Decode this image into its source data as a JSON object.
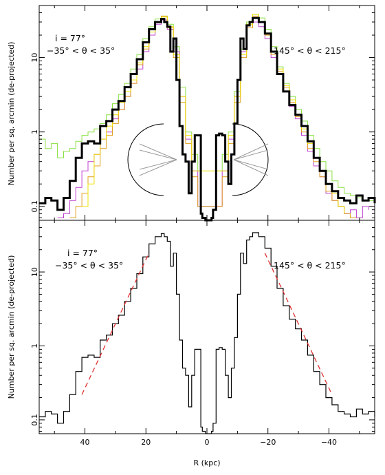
{
  "chart_data": [
    {
      "type": "line",
      "panel": "top",
      "xlabel": "",
      "ylabel": "Number per sq. arcmin (de-projected)",
      "xlim": [
        55,
        -55
      ],
      "ylim": [
        0.065,
        50
      ],
      "yscale": "log",
      "x_tick_values": [
        40,
        20,
        0,
        -20,
        -40
      ],
      "y_ticks": [
        {
          "value": 0.1,
          "label": "0.1"
        },
        {
          "value": 1,
          "label": "1"
        },
        {
          "value": 10,
          "label": "10"
        }
      ],
      "annotations": {
        "inclination": "i = 77°",
        "left_wedge": "−35° < θ < 35°",
        "right_wedge": "145° < θ < 215°"
      },
      "series": [
        {
          "color": "#000000",
          "width": 3,
          "x": [
            55,
            53,
            51,
            49,
            47,
            45,
            43,
            41,
            39,
            37,
            35,
            33,
            31,
            29,
            27,
            25,
            23,
            21,
            19,
            17,
            15,
            14,
            13,
            12,
            11,
            10,
            9,
            8,
            7,
            6,
            5,
            4,
            3,
            2,
            1.5,
            0.5,
            -0.5,
            -1.5,
            -2,
            -3,
            -4,
            -5,
            -6,
            -7,
            -8,
            -9,
            -10,
            -11,
            -12,
            -13,
            -14,
            -15,
            -17,
            -19,
            -21,
            -23,
            -25,
            -27,
            -29,
            -31,
            -33,
            -35,
            -37,
            -39,
            -41,
            -43,
            -45,
            -47,
            -49,
            -51,
            -53,
            -55
          ],
          "y": [
            0.11,
            0.13,
            0.12,
            0.09,
            0.13,
            0.22,
            0.45,
            0.7,
            0.75,
            0.7,
            1.2,
            1.4,
            2.0,
            2.6,
            4.0,
            6.0,
            9.5,
            16,
            24,
            30,
            33,
            30,
            26,
            12,
            18,
            5.0,
            1.2,
            0.5,
            0.4,
            0.15,
            0.4,
            0.9,
            0.9,
            0.08,
            0.07,
            0.04,
            0.04,
            0.07,
            0.09,
            0.9,
            0.95,
            0.9,
            0.4,
            0.2,
            0.5,
            1.3,
            5.0,
            18,
            13,
            27,
            30,
            34,
            30,
            21,
            12,
            6.0,
            3.5,
            2.3,
            1.7,
            1.2,
            0.75,
            0.45,
            0.3,
            0.2,
            0.16,
            0.13,
            0.12,
            0.11,
            0.14,
            0.12,
            0.13,
            0.11
          ]
        },
        {
          "color": "#88e040",
          "width": 1,
          "x": [
            55,
            53,
            51,
            49,
            47,
            45,
            43,
            41,
            39,
            37,
            35,
            33,
            31,
            29,
            27,
            25,
            23,
            21,
            19,
            17,
            15,
            13,
            11,
            9,
            7,
            5,
            3,
            2,
            -2,
            -3,
            -5,
            -7,
            -9,
            -11,
            -13,
            -15,
            -17,
            -19,
            -21,
            -23,
            -25,
            -27,
            -29,
            -31,
            -33,
            -35,
            -37,
            -39,
            -41,
            -43,
            -45,
            -47,
            -49,
            -51,
            -53,
            -55
          ],
          "y": [
            0.8,
            0.6,
            0.7,
            0.45,
            0.55,
            0.6,
            0.75,
            0.9,
            1.0,
            1.1,
            1.3,
            1.7,
            2.4,
            3.2,
            4.5,
            7.0,
            11,
            18,
            26,
            33,
            36,
            28,
            14,
            4.0,
            1.0,
            0.5,
            0.3,
            0.1,
            0.1,
            0.3,
            0.5,
            1.0,
            3.5,
            13,
            30,
            38,
            34,
            24,
            14,
            7.5,
            4.5,
            3.0,
            2.0,
            1.4,
            0.9,
            0.6,
            0.4,
            0.3,
            0.22,
            0.18,
            0.15,
            0.14,
            0.13,
            0.12,
            0.12,
            0.12
          ]
        },
        {
          "color": "#c040d0",
          "width": 1,
          "x": [
            49,
            47,
            45,
            43,
            41,
            39,
            37,
            35,
            33,
            31,
            29,
            27,
            25,
            23,
            21,
            19,
            17,
            15,
            13,
            11,
            9,
            7,
            5,
            3,
            -3,
            -5,
            -7,
            -9,
            -11,
            -13,
            -15,
            -17,
            -19,
            -21,
            -23,
            -25,
            -27,
            -29,
            -31,
            -33,
            -35,
            -37,
            -39,
            -41,
            -43,
            -45,
            -47,
            -49,
            -51,
            -53
          ],
          "y": [
            0.07,
            0.08,
            0.12,
            0.18,
            0.3,
            0.4,
            0.5,
            0.8,
            1.0,
            1.5,
            2.0,
            3.0,
            4.5,
            7.0,
            12,
            20,
            28,
            32,
            24,
            12,
            3.0,
            0.8,
            0.3,
            0.1,
            0.1,
            0.3,
            0.8,
            3.0,
            12,
            25,
            30,
            26,
            18,
            10,
            6.0,
            3.5,
            2.2,
            1.5,
            0.9,
            0.55,
            0.35,
            0.25,
            0.15,
            0.12,
            0.1,
            0.08,
            0.09,
            0.07,
            0.1,
            0.09
          ]
        },
        {
          "color": "#e0a020",
          "width": 1,
          "x": [
            45,
            43,
            41,
            39,
            37,
            35,
            33,
            31,
            29,
            27,
            25,
            23,
            21,
            19,
            17,
            15,
            13,
            11,
            9,
            7,
            5,
            3,
            -3,
            -5,
            -7,
            -9,
            -11,
            -13,
            -15,
            -17,
            -19,
            -21,
            -23,
            -25,
            -27,
            -29,
            -31,
            -33,
            -35,
            -37,
            -39,
            -41,
            -43,
            -45,
            -47,
            -49
          ],
          "y": [
            0.07,
            0.1,
            0.15,
            0.25,
            0.35,
            0.6,
            0.9,
            1.3,
            2.0,
            3.0,
            4.5,
            8.0,
            13,
            22,
            30,
            36,
            25,
            10,
            2.5,
            0.7,
            0.25,
            0.1,
            0.1,
            0.25,
            0.7,
            2.5,
            10,
            25,
            36,
            30,
            20,
            11,
            6.5,
            4.0,
            2.5,
            1.6,
            1.0,
            0.6,
            0.4,
            0.25,
            0.16,
            0.12,
            0.1,
            0.08,
            0.07,
            0.07
          ]
        },
        {
          "color": "#f0e000",
          "width": 1,
          "x": [
            41,
            39,
            37,
            35,
            33,
            31,
            29,
            27,
            25,
            23,
            21,
            19,
            17,
            15,
            13,
            11,
            9,
            7,
            5,
            -5,
            -7,
            -9,
            -11,
            -13,
            -15,
            -17,
            -19,
            -21,
            -23,
            -25,
            -27,
            -29,
            -31,
            -33,
            -35,
            -37,
            -39,
            -41,
            -43,
            -45
          ],
          "y": [
            0.1,
            0.2,
            0.5,
            0.8,
            1.2,
            1.7,
            2.5,
            3.5,
            5.0,
            8.5,
            14,
            22,
            30,
            35,
            26,
            11,
            3.0,
            0.9,
            0.3,
            0.3,
            0.9,
            3.0,
            11,
            28,
            38,
            30,
            21,
            12,
            7.0,
            4.2,
            2.7,
            1.7,
            1.1,
            0.7,
            0.45,
            0.3,
            0.2,
            0.15,
            0.1,
            0.08
          ]
        }
      ]
    },
    {
      "type": "line",
      "panel": "bottom",
      "xlabel": "R (kpc)",
      "ylabel": "Number per sq. arcmin (de-projected)",
      "xlim": [
        55,
        -55
      ],
      "ylim": [
        0.065,
        50
      ],
      "yscale": "log",
      "x_ticks": [
        {
          "value": 40,
          "label": "40"
        },
        {
          "value": 20,
          "label": "20"
        },
        {
          "value": 0,
          "label": "0"
        },
        {
          "value": -20,
          "label": "−20"
        },
        {
          "value": -40,
          "label": "−40"
        }
      ],
      "y_ticks": [
        {
          "value": 0.1,
          "label": "0.1"
        },
        {
          "value": 1,
          "label": "1"
        },
        {
          "value": 10,
          "label": "10"
        }
      ],
      "annotations": {
        "inclination": "i = 77°",
        "left_wedge": "−35° < θ < 35°",
        "right_wedge": "145° < θ < 215°"
      },
      "series": [
        {
          "color": "#000000",
          "width": 1.2,
          "x": [
            55,
            53,
            51,
            49,
            47,
            45,
            43,
            41,
            39,
            37,
            35,
            33,
            31,
            29,
            27,
            25,
            23,
            21,
            19,
            17,
            15,
            14,
            13,
            12,
            11,
            10,
            9,
            8,
            7,
            6,
            5,
            4,
            3,
            2,
            1.5,
            0.5,
            -0.5,
            -1.5,
            -2,
            -3,
            -4,
            -5,
            -6,
            -7,
            -8,
            -9,
            -10,
            -11,
            -12,
            -13,
            -14,
            -15,
            -17,
            -19,
            -21,
            -23,
            -25,
            -27,
            -29,
            -31,
            -33,
            -35,
            -37,
            -39,
            -41,
            -43,
            -45,
            -47,
            -49,
            -51,
            -53,
            -55
          ],
          "y": [
            0.11,
            0.13,
            0.12,
            0.09,
            0.13,
            0.22,
            0.45,
            0.7,
            0.75,
            0.7,
            1.2,
            1.4,
            2.0,
            2.6,
            4.0,
            6.0,
            9.5,
            16,
            24,
            30,
            33,
            30,
            26,
            12,
            18,
            5.0,
            1.2,
            0.5,
            0.4,
            0.15,
            0.4,
            0.9,
            0.9,
            0.08,
            0.07,
            0.04,
            0.04,
            0.07,
            0.09,
            0.9,
            0.95,
            0.9,
            0.4,
            0.2,
            0.5,
            1.3,
            5.0,
            18,
            13,
            27,
            30,
            34,
            30,
            21,
            12,
            6.0,
            3.5,
            2.3,
            1.7,
            1.2,
            0.75,
            0.45,
            0.3,
            0.2,
            0.16,
            0.13,
            0.12,
            0.11,
            0.14,
            0.12,
            0.13,
            0.11
          ]
        }
      ],
      "fits": [
        {
          "color": "#e03030",
          "style": "dashed",
          "x": [
            41,
            19
          ],
          "y": [
            0.22,
            18
          ]
        },
        {
          "color": "#e03030",
          "style": "dashed",
          "x": [
            -19,
            -41
          ],
          "y": [
            18,
            0.22
          ]
        }
      ]
    }
  ]
}
